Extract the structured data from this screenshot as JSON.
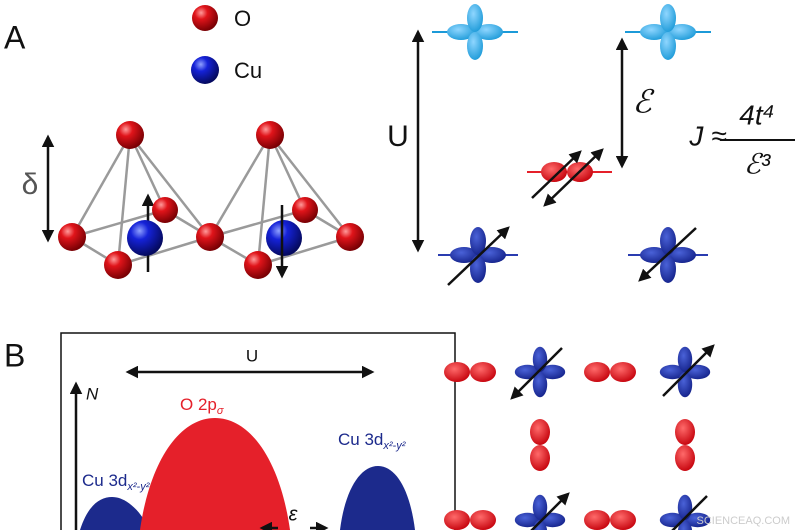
{
  "panel_a": {
    "label": "A",
    "legend": [
      {
        "label": "O"
      },
      {
        "label": "Cu"
      }
    ],
    "delta": "δ",
    "energy_diagram": {
      "u": "U",
      "epsilon": "ℰ",
      "formula": {
        "lhs": "J ≈",
        "numerator": "4t⁴",
        "denominator": "ℰ³"
      }
    }
  },
  "panel_b": {
    "label": "B",
    "u": "U",
    "axis_label": "N",
    "epsilon": "ε",
    "peaks": [
      {
        "main": "Cu 3d",
        "sub": "x²-y²"
      },
      {
        "main": "O 2p",
        "sub": "σ"
      },
      {
        "main": "Cu 3d",
        "sub": "x²-y²"
      }
    ]
  },
  "watermark": "SCIENCEAQ.COM"
}
